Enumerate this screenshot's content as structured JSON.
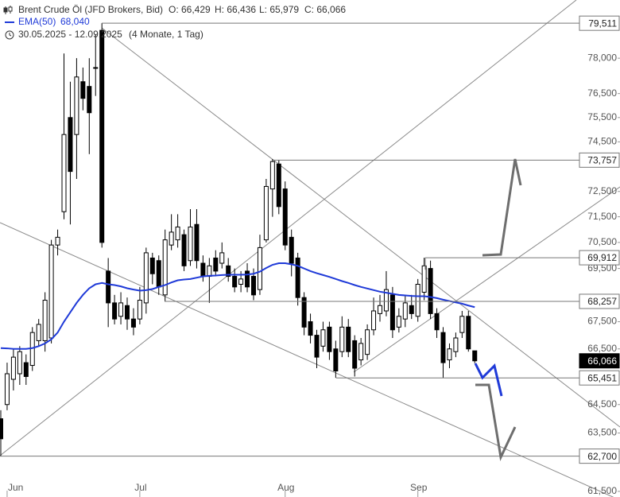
{
  "chart_data": {
    "type": "candlestick",
    "title": "Brent Crude Öl (JFD Brokers, Bid)",
    "ohlc_labels": [
      "O: 66,429",
      "H: 66,436",
      "L: 65,979",
      "C: 66,066"
    ],
    "date_range": "30.05.2025 - 12.09.2025",
    "period": "(4 Monate, 1 Tag)",
    "log_scale": true,
    "ylim": [
      61.31,
      80.53
    ],
    "yticks": [
      {
        "value": 78,
        "label": "78,000"
      },
      {
        "value": 76.5,
        "label": "76,500"
      },
      {
        "value": 75.5,
        "label": "75,500"
      },
      {
        "value": 74.5,
        "label": "74,500"
      },
      {
        "value": 72.5,
        "label": "72,500"
      },
      {
        "value": 71.5,
        "label": "71,500"
      },
      {
        "value": 70.5,
        "label": "70,500"
      },
      {
        "value": 69.5,
        "label": "69,500"
      },
      {
        "value": 67.5,
        "label": "67,500"
      },
      {
        "value": 66.5,
        "label": "66,500"
      },
      {
        "value": 64.5,
        "label": "64,500"
      },
      {
        "value": 63.5,
        "label": "63,500"
      },
      {
        "value": 61.5,
        "label": "61,500"
      }
    ],
    "categories": [
      null,
      "Jun",
      null,
      null,
      null,
      null,
      null,
      null,
      null,
      null,
      null,
      null,
      null,
      null,
      null,
      null,
      null,
      null,
      null,
      null,
      null,
      null,
      "Jul",
      null,
      null,
      null,
      null,
      null,
      null,
      null,
      null,
      null,
      null,
      null,
      null,
      null,
      null,
      null,
      null,
      null,
      null,
      null,
      null,
      null,
      null,
      "Aug",
      null,
      null,
      null,
      null,
      null,
      null,
      null,
      null,
      null,
      null,
      null,
      null,
      null,
      null,
      null,
      null,
      null,
      null,
      null,
      null,
      "Sep",
      null,
      null,
      null,
      null,
      null,
      null,
      null,
      null,
      null
    ],
    "series": [
      {
        "name": "Brent Crude Öl",
        "up_color": "#ffffff",
        "down_color": "#000000",
        "open": [
          64.0,
          64.5,
          65.4,
          65.6,
          66.0,
          65.9,
          66.8,
          66.8,
          66.9,
          70.4,
          71.7,
          75.5,
          74.8,
          77.0,
          76.8,
          77.6,
          79.2,
          69.4,
          68.2,
          67.7,
          68.1,
          67.6,
          67.6,
          68.2,
          69.9,
          69.8,
          68.5,
          70.4,
          70.6,
          70.8,
          69.8,
          71.2,
          69.7,
          69.2,
          69.9,
          69.7,
          69.6,
          69.2,
          68.9,
          69.4,
          69.2,
          68.7,
          70.6,
          72.6,
          73.6,
          72.6,
          70.7,
          69.9,
          68.4,
          67.5,
          67.0,
          66.6,
          67.3,
          66.5,
          66.4,
          67.3,
          66.8,
          66.1,
          66.3,
          67.2,
          67.8,
          67.9,
          68.5,
          67.3,
          67.6,
          68.1,
          67.7,
          68.6,
          69.5,
          67.8,
          67.1,
          66.1,
          66.4,
          67.1,
          67.7,
          66.429
        ],
        "high": [
          64.3,
          66.0,
          66.5,
          66.6,
          66.3,
          67.3,
          67.6,
          68.6,
          70.6,
          71.0,
          78.2,
          77.0,
          78.0,
          77.6,
          78.0,
          79.0,
          79.511,
          69.9,
          68.5,
          68.6,
          68.4,
          68.0,
          68.8,
          70.3,
          70.1,
          70.0,
          71.0,
          71.6,
          71.6,
          71.0,
          71.8,
          71.8,
          70.0,
          69.9,
          70.2,
          70.5,
          69.9,
          69.5,
          69.4,
          69.7,
          69.5,
          70.8,
          73.0,
          73.8,
          73.757,
          72.9,
          71.0,
          70.1,
          68.6,
          67.8,
          67.2,
          67.5,
          67.5,
          66.8,
          67.7,
          67.6,
          67.0,
          66.9,
          67.4,
          68.4,
          68.5,
          69.4,
          68.8,
          68.0,
          68.5,
          68.5,
          69.1,
          69.912,
          69.8,
          68.0,
          67.3,
          66.7,
          67.1,
          67.9,
          67.9,
          66.436
        ],
        "low": [
          62.7,
          64.3,
          65.0,
          65.2,
          65.2,
          65.7,
          66.6,
          66.4,
          66.7,
          70.0,
          71.4,
          71.2,
          73.0,
          75.8,
          74.0,
          76.4,
          70.3,
          67.3,
          67.4,
          67.4,
          67.2,
          67.0,
          67.4,
          67.8,
          68.9,
          68.5,
          68.257,
          70.2,
          70.3,
          69.4,
          69.6,
          69.5,
          69.0,
          68.2,
          69.2,
          69.5,
          69.0,
          68.6,
          68.6,
          68.6,
          68.3,
          68.5,
          70.5,
          71.5,
          71.6,
          70.2,
          69.2,
          68.1,
          67.0,
          66.7,
          65.8,
          66.4,
          66.1,
          65.451,
          66.2,
          66.2,
          65.5,
          65.9,
          66.1,
          67.0,
          67.5,
          67.7,
          66.9,
          67.1,
          67.3,
          67.6,
          67.5,
          68.3,
          67.6,
          66.9,
          65.451,
          65.8,
          66.2,
          66.9,
          66.4,
          65.979
        ],
        "close": [
          63.3,
          65.6,
          66.2,
          66.4,
          65.5,
          67.1,
          67.4,
          68.3,
          70.4,
          70.7,
          74.8,
          73.3,
          77.2,
          76.3,
          75.7,
          77.6,
          70.5,
          68.2,
          67.6,
          68.2,
          67.6,
          67.3,
          68.3,
          70.1,
          69.3,
          68.8,
          70.6,
          70.9,
          71.1,
          69.6,
          71.1,
          69.8,
          69.2,
          69.6,
          69.4,
          70.1,
          69.2,
          68.8,
          69.1,
          68.8,
          68.5,
          70.3,
          72.7,
          73.7,
          71.9,
          70.4,
          69.7,
          68.4,
          67.3,
          67.0,
          66.2,
          67.2,
          66.4,
          65.7,
          67.3,
          66.4,
          65.8,
          66.7,
          67.2,
          67.9,
          68.1,
          68.7,
          67.2,
          67.7,
          68.2,
          67.8,
          68.9,
          69.6,
          67.8,
          67.2,
          66.0,
          66.5,
          66.9,
          67.7,
          66.5,
          66.066
        ]
      },
      {
        "name": "EMA(50)",
        "color": "#1f3ad8",
        "last_label": "68,040",
        "values": [
          66.53,
          66.52,
          66.5,
          66.5,
          66.5,
          66.53,
          66.6,
          66.7,
          66.85,
          67.1,
          67.5,
          67.85,
          68.2,
          68.5,
          68.75,
          68.9,
          68.95,
          68.9,
          68.87,
          68.82,
          68.75,
          68.7,
          68.66,
          68.68,
          68.72,
          68.8,
          68.87,
          68.97,
          69.05,
          69.08,
          69.1,
          69.15,
          69.2,
          69.22,
          69.23,
          69.25,
          69.26,
          69.26,
          69.26,
          69.27,
          69.3,
          69.38,
          69.52,
          69.64,
          69.7,
          69.7,
          69.66,
          69.6,
          69.5,
          69.4,
          69.32,
          69.25,
          69.18,
          69.1,
          69.02,
          68.95,
          68.87,
          68.8,
          68.74,
          68.68,
          68.62,
          68.58,
          68.54,
          68.5,
          68.48,
          68.46,
          68.45,
          68.45,
          68.42,
          68.38,
          68.32,
          68.27,
          68.22,
          68.17,
          68.1,
          68.04
        ]
      }
    ],
    "levels": [
      {
        "value": 79.511,
        "label": "79,511"
      },
      {
        "value": 73.757,
        "label": "73,757"
      },
      {
        "value": 69.912,
        "label": "69,912"
      },
      {
        "value": 68.257,
        "label": "68,257"
      },
      {
        "value": 65.451,
        "label": "65,451"
      },
      {
        "value": 62.7,
        "label": "62,700"
      }
    ],
    "last_price": {
      "value": 66.066,
      "label": "66,066"
    }
  }
}
